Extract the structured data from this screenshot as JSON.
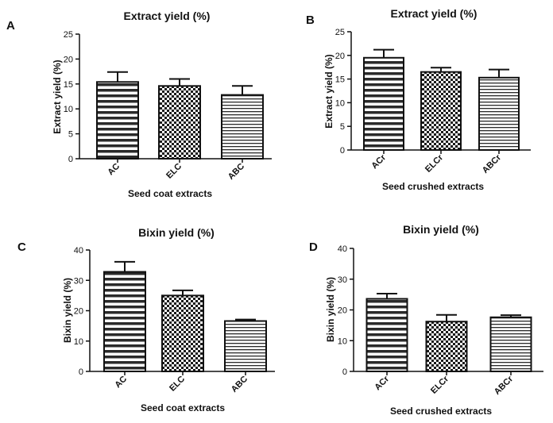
{
  "chart_data": [
    {
      "panel": "A",
      "type": "bar",
      "title": "Extract yield (%)",
      "ylabel": "Extract yield (%)",
      "xlabel": "Seed coat extracts",
      "categories": [
        "AC",
        "ELC",
        "ABC"
      ],
      "values": [
        15.4,
        14.6,
        12.8
      ],
      "errors": [
        2.0,
        1.4,
        1.8
      ],
      "patterns": [
        "hlines",
        "checker",
        "hlines-fine"
      ],
      "ylim": [
        0,
        25
      ],
      "yticks": [
        0,
        5,
        10,
        15,
        20,
        25
      ]
    },
    {
      "panel": "B",
      "type": "bar",
      "title": "Extract yield (%)",
      "ylabel": "Extract yield (%)",
      "xlabel": "Seed crushed extracts",
      "categories": [
        "ACr",
        "ELCr",
        "ABCr"
      ],
      "values": [
        19.5,
        16.5,
        15.3
      ],
      "errors": [
        1.7,
        0.9,
        1.7
      ],
      "patterns": [
        "hlines",
        "checker",
        "hlines-fine"
      ],
      "ylim": [
        0,
        25
      ],
      "yticks": [
        0,
        5,
        10,
        15,
        20,
        25
      ]
    },
    {
      "panel": "C",
      "type": "bar",
      "title": "Bixin yield (%)",
      "ylabel": "Bixin yield (%)",
      "xlabel": "Seed coat extracts",
      "categories": [
        "AC",
        "ELC",
        "ABC"
      ],
      "values": [
        32.8,
        25.0,
        16.6
      ],
      "errors": [
        3.3,
        1.7,
        0.5
      ],
      "patterns": [
        "hlines",
        "checker",
        "hlines-fine"
      ],
      "ylim": [
        0,
        40
      ],
      "yticks": [
        0,
        10,
        20,
        30,
        40
      ]
    },
    {
      "panel": "D",
      "type": "bar",
      "title": "Bixin yield (%)",
      "ylabel": "Bixin yield (%)",
      "xlabel": "Seed crushed extracts",
      "categories": [
        "ACr",
        "ELCr",
        "ABCr"
      ],
      "values": [
        23.6,
        16.2,
        17.6
      ],
      "errors": [
        1.7,
        2.2,
        0.7
      ],
      "patterns": [
        "hlines",
        "checker",
        "hlines-fine"
      ],
      "ylim": [
        0,
        40
      ],
      "yticks": [
        0,
        10,
        20,
        30,
        40
      ]
    }
  ],
  "colors": {
    "ink": "#111111",
    "background": "#ffffff"
  }
}
